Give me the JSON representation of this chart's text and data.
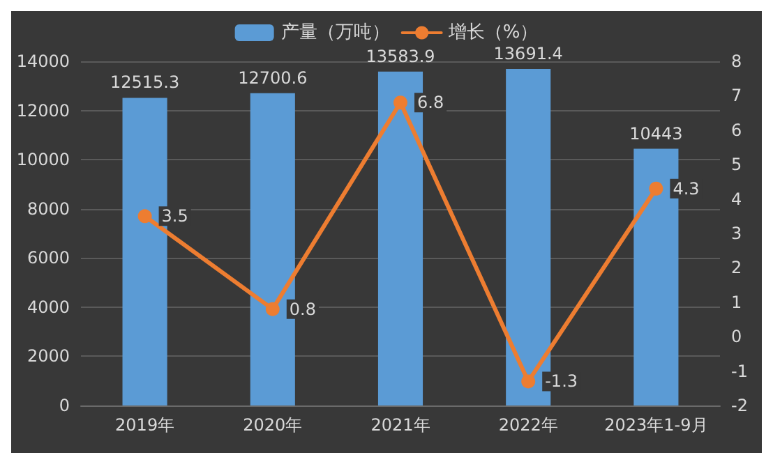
{
  "chart_data": {
    "type": "bar",
    "categories": [
      "2019年",
      "2020年",
      "2021年",
      "2022年",
      "2023年1-9月"
    ],
    "series": [
      {
        "name": "产量（万吨）",
        "color": "#5b9bd5",
        "values": [
          12515.3,
          12700.6,
          13583.9,
          13691.4,
          10443
        ]
      },
      {
        "name": "增长（%）",
        "type": "line",
        "axis": "y2",
        "color": "#ed7d31",
        "values": [
          3.5,
          0.8,
          6.8,
          -1.3,
          4.3
        ]
      }
    ],
    "ylim": [
      0,
      14000
    ],
    "yticks": [
      0,
      2000,
      4000,
      6000,
      8000,
      10000,
      12000,
      14000
    ],
    "y2lim": [
      -2,
      8
    ],
    "y2ticks": [
      -2,
      -1,
      0,
      1,
      2,
      3,
      4,
      5,
      6,
      7,
      8
    ],
    "grid": "y",
    "legend": "top",
    "marker": "circle",
    "line_style": "solid",
    "data_labels": true
  }
}
